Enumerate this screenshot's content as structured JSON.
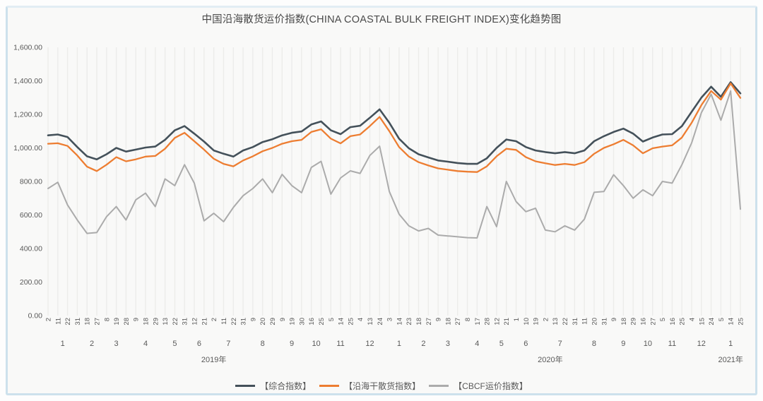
{
  "chart_data": {
    "type": "line",
    "title": "中国沿海散货运价指数(CHINA COASTAL BULK FREIGHT INDEX)变化趋势图",
    "grid": "vertical-stripes",
    "legend_position": "bottom",
    "y_axis": {
      "min": 0,
      "max": 1600,
      "tick_step": 200,
      "tick_labels": [
        "0.00",
        "200.00",
        "400.00",
        "600.00",
        "800.00",
        "1,000.00",
        "1,200.00",
        "1,400.00",
        "1,600.00"
      ]
    },
    "x_axis": {
      "day_labels": [
        "2",
        "11",
        "22",
        "31",
        "18",
        "27",
        "8",
        "19",
        "28",
        "9",
        "18",
        "29",
        "13",
        "22",
        "31",
        "12",
        "21",
        "2",
        "11",
        "22",
        "31",
        "9",
        "20",
        "29",
        "9",
        "19",
        "30",
        "16",
        "25",
        "5",
        "14",
        "25",
        "4",
        "13",
        "24",
        "3",
        "14",
        "23",
        "18",
        "27",
        "9",
        "18",
        "27",
        "8",
        "17",
        "28",
        "12",
        "21",
        "1",
        "10",
        "19",
        "2",
        "13",
        "22",
        "31",
        "11",
        "20",
        "31",
        "9",
        "18",
        "29",
        "16",
        "27",
        "5",
        "16",
        "25",
        "4",
        "15",
        "24",
        "5",
        "14",
        "25"
      ],
      "years": [
        {
          "label": "2019年",
          "months": [
            {
              "label": "1",
              "days": 4
            },
            {
              "label": "2",
              "days": 2
            },
            {
              "label": "3",
              "days": 3
            },
            {
              "label": "4",
              "days": 3
            },
            {
              "label": "5",
              "days": 3
            },
            {
              "label": "6",
              "days": 2
            },
            {
              "label": "7",
              "days": 4
            },
            {
              "label": "8",
              "days": 3
            },
            {
              "label": "9",
              "days": 3
            },
            {
              "label": "10",
              "days": 2
            },
            {
              "label": "11",
              "days": 3
            },
            {
              "label": "12",
              "days": 3
            }
          ]
        },
        {
          "label": "2020年",
          "months": [
            {
              "label": "1",
              "days": 3
            },
            {
              "label": "2",
              "days": 2
            },
            {
              "label": "3",
              "days": 3
            },
            {
              "label": "4",
              "days": 3
            },
            {
              "label": "5",
              "days": 2
            },
            {
              "label": "6",
              "days": 3
            },
            {
              "label": "7",
              "days": 4
            },
            {
              "label": "8",
              "days": 3
            },
            {
              "label": "9",
              "days": 3
            },
            {
              "label": "10",
              "days": 2
            },
            {
              "label": "11",
              "days": 3
            },
            {
              "label": "12",
              "days": 3
            }
          ]
        },
        {
          "label": "2021年",
          "months": [
            {
              "label": "1",
              "days": 3
            }
          ]
        }
      ]
    },
    "series": [
      {
        "name": "【综合指数】",
        "color": "#44515a",
        "values": [
          1075,
          1080,
          1065,
          1005,
          950,
          932,
          962,
          1000,
          978,
          990,
          1002,
          1008,
          1048,
          1105,
          1130,
          1085,
          1038,
          985,
          965,
          948,
          985,
          1005,
          1035,
          1052,
          1075,
          1090,
          1098,
          1140,
          1158,
          1105,
          1082,
          1124,
          1132,
          1180,
          1230,
          1150,
          1055,
          998,
          962,
          943,
          925,
          918,
          910,
          905,
          905,
          938,
          1000,
          1050,
          1040,
          1005,
          985,
          975,
          968,
          975,
          968,
          985,
          1040,
          1070,
          1095,
          1115,
          1085,
          1038,
          1062,
          1080,
          1082,
          1130,
          1215,
          1300,
          1365,
          1305,
          1392,
          1325
        ]
      },
      {
        "name": "【沿海干散货指数】",
        "color": "#ED7D31",
        "values": [
          1025,
          1028,
          1012,
          955,
          888,
          862,
          900,
          945,
          920,
          932,
          948,
          952,
          995,
          1060,
          1090,
          1040,
          990,
          935,
          905,
          890,
          925,
          950,
          980,
          1000,
          1025,
          1040,
          1048,
          1095,
          1111,
          1055,
          1027,
          1070,
          1080,
          1130,
          1185,
          1100,
          1005,
          948,
          915,
          895,
          878,
          870,
          862,
          858,
          856,
          890,
          950,
          995,
          988,
          945,
          920,
          908,
          898,
          905,
          898,
          915,
          965,
          1000,
          1022,
          1048,
          1015,
          968,
          998,
          1008,
          1015,
          1062,
          1150,
          1255,
          1340,
          1288,
          1385,
          1298
        ]
      },
      {
        "name": "【CBCF运价指数】",
        "color": "#ababab",
        "values": [
          758,
          795,
          660,
          570,
          490,
          495,
          590,
          650,
          570,
          690,
          730,
          650,
          815,
          775,
          900,
          790,
          565,
          610,
          560,
          645,
          715,
          758,
          815,
          733,
          842,
          775,
          733,
          884,
          920,
          724,
          821,
          863,
          848,
          955,
          1010,
          740,
          605,
          535,
          505,
          520,
          480,
          475,
          470,
          465,
          463,
          650,
          530,
          800,
          680,
          620,
          640,
          510,
          500,
          535,
          510,
          575,
          735,
          740,
          840,
          775,
          700,
          750,
          715,
          800,
          790,
          900,
          1030,
          1210,
          1320,
          1165,
          1340,
          635
        ]
      }
    ],
    "colors": {
      "frame_border": "#cde1ec",
      "plot_background": "#f9f9f8",
      "stripe": "#ececea",
      "axis_text": "#595959",
      "title_text": "#4a4a4a"
    }
  }
}
